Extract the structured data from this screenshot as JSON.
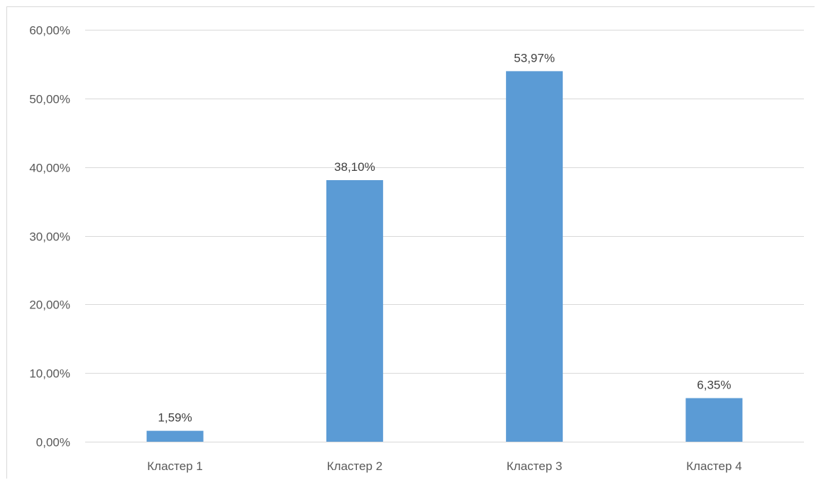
{
  "chart_data": {
    "type": "bar",
    "categories": [
      "Кластер 1",
      "Кластер 2",
      "Кластер 3",
      "Кластер 4"
    ],
    "values": [
      1.59,
      38.1,
      53.97,
      6.35
    ],
    "data_labels": [
      "1,59%",
      "38,10%",
      "53,97%",
      "6,35%"
    ],
    "ylim": [
      0,
      60
    ],
    "yticks": [
      0,
      10,
      20,
      30,
      40,
      50,
      60
    ],
    "ytick_labels": [
      "0,00%",
      "10,00%",
      "20,00%",
      "30,00%",
      "40,00%",
      "50,00%",
      "60,00%"
    ],
    "grid": true,
    "legend": "none",
    "bar_color": "#5b9bd5",
    "grid_color": "#d9d9d9"
  }
}
